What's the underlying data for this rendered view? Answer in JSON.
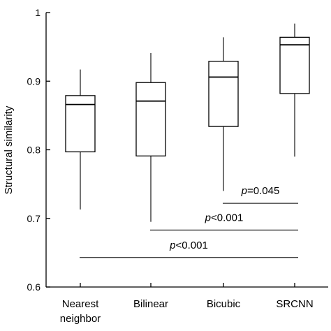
{
  "chart_data": {
    "type": "box",
    "ylabel": "Structural similarity",
    "xlabel": "",
    "ylim": [
      0.6,
      1.0
    ],
    "yticks": [
      0.6,
      0.7,
      0.8,
      0.9,
      1.0
    ],
    "ytick_labels": [
      "0.6",
      "0.7",
      "0.8",
      "0.9",
      "1"
    ],
    "categories": [
      {
        "line1": "Nearest",
        "line2": "neighbor"
      },
      {
        "line1": "Bilinear",
        "line2": ""
      },
      {
        "line1": "Bicubic",
        "line2": ""
      },
      {
        "line1": "SRCNN",
        "line2": ""
      }
    ],
    "boxes": [
      {
        "whisker_low": 0.713,
        "q1": 0.797,
        "median": 0.866,
        "q3": 0.879,
        "whisker_high": 0.917
      },
      {
        "whisker_low": 0.695,
        "q1": 0.791,
        "median": 0.871,
        "q3": 0.898,
        "whisker_high": 0.941
      },
      {
        "whisker_low": 0.74,
        "q1": 0.834,
        "median": 0.906,
        "q3": 0.929,
        "whisker_high": 0.964
      },
      {
        "whisker_low": 0.79,
        "q1": 0.882,
        "median": 0.953,
        "q3": 0.964,
        "whisker_high": 0.984
      }
    ],
    "significance": [
      {
        "from": 2,
        "to": 3,
        "y": 0.722,
        "italic": "p",
        "text": "=0.045"
      },
      {
        "from": 1,
        "to": 3,
        "y": 0.683,
        "italic": "p",
        "text": "<0.001"
      },
      {
        "from": 0,
        "to": 3,
        "y": 0.643,
        "italic": "p",
        "text": "<0.001"
      }
    ]
  }
}
